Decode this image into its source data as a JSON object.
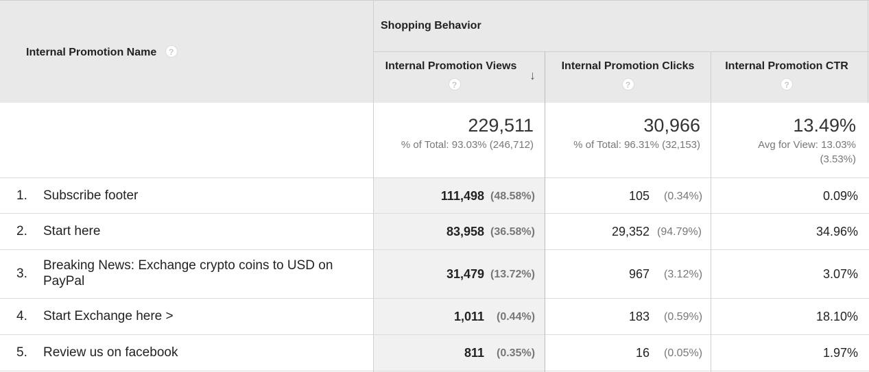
{
  "header": {
    "dimension_label": "Internal Promotion Name",
    "group_label": "Shopping Behavior",
    "columns": [
      {
        "label": "Internal Promotion Views"
      },
      {
        "label": "Internal Promotion Clicks"
      },
      {
        "label": "Internal Promotion CTR"
      }
    ],
    "help_glyph": "?",
    "sort_glyph": "↓"
  },
  "totals": {
    "views": {
      "value": "229,511",
      "sub": "% of Total: 93.03% (246,712)"
    },
    "clicks": {
      "value": "30,966",
      "sub": "% of Total: 96.31% (32,153)"
    },
    "ctr": {
      "value": "13.49%",
      "sub1": "Avg for View: 13.03%",
      "sub2": "(3.53%)"
    }
  },
  "rows": [
    {
      "rank": "1.",
      "name": "Subscribe footer",
      "views": "111,498",
      "views_pct": "(48.58%)",
      "clicks": "105",
      "clicks_pct": "(0.34%)",
      "ctr": "0.09%"
    },
    {
      "rank": "2.",
      "name": "Start here",
      "views": "83,958",
      "views_pct": "(36.58%)",
      "clicks": "29,352",
      "clicks_pct": "(94.79%)",
      "ctr": "34.96%"
    },
    {
      "rank": "3.",
      "name": "Breaking News: Exchange crypto coins to USD on PayPal",
      "views": "31,479",
      "views_pct": "(13.72%)",
      "clicks": "967",
      "clicks_pct": "(3.12%)",
      "ctr": "3.07%"
    },
    {
      "rank": "4.",
      "name": "Start Exchange here >",
      "views": "1,011",
      "views_pct": "(0.44%)",
      "clicks": "183",
      "clicks_pct": "(0.59%)",
      "ctr": "18.10%"
    },
    {
      "rank": "5.",
      "name": "Review us on facebook",
      "views": "811",
      "views_pct": "(0.35%)",
      "clicks": "16",
      "clicks_pct": "(0.05%)",
      "ctr": "1.97%"
    }
  ]
}
